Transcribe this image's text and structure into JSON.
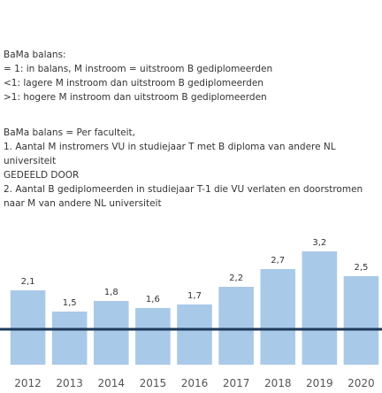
{
  "notes": {
    "lines1": [
      "BaMa balans:",
      "= 1: in balans, M instroom = uitstroom B gediplomeerden",
      "<1: lagere M instroom dan uitstroom B gediplomeerden",
      ">1: hogere M instroom dan uitstroom B gediplomeerden"
    ],
    "lines2": [
      "BaMa balans = Per faculteit,",
      "1. Aantal M instromers VU in studiejaar T met B diploma van andere NL universiteit",
      "GEDEELD DOOR",
      "2. Aantal B gediplomeerden in studiejaar T-1 die VU verlaten en doorstromen naar M van andere NL universiteit"
    ]
  },
  "chart_data": {
    "type": "bar",
    "categories": [
      "2012",
      "2013",
      "2014",
      "2015",
      "2016",
      "2017",
      "2018",
      "2019",
      "2020"
    ],
    "values": [
      2.1,
      1.5,
      1.8,
      1.6,
      1.7,
      2.2,
      2.7,
      3.2,
      2.5
    ],
    "value_labels": [
      "2,1",
      "1,5",
      "1,8",
      "1,6",
      "1,7",
      "2,2",
      "2,7",
      "3,2",
      "2,5"
    ],
    "color": "#a9c9e8",
    "reference_line": 1,
    "reference_color": "#1f3b5c",
    "ylim": [
      0,
      3.5
    ]
  }
}
